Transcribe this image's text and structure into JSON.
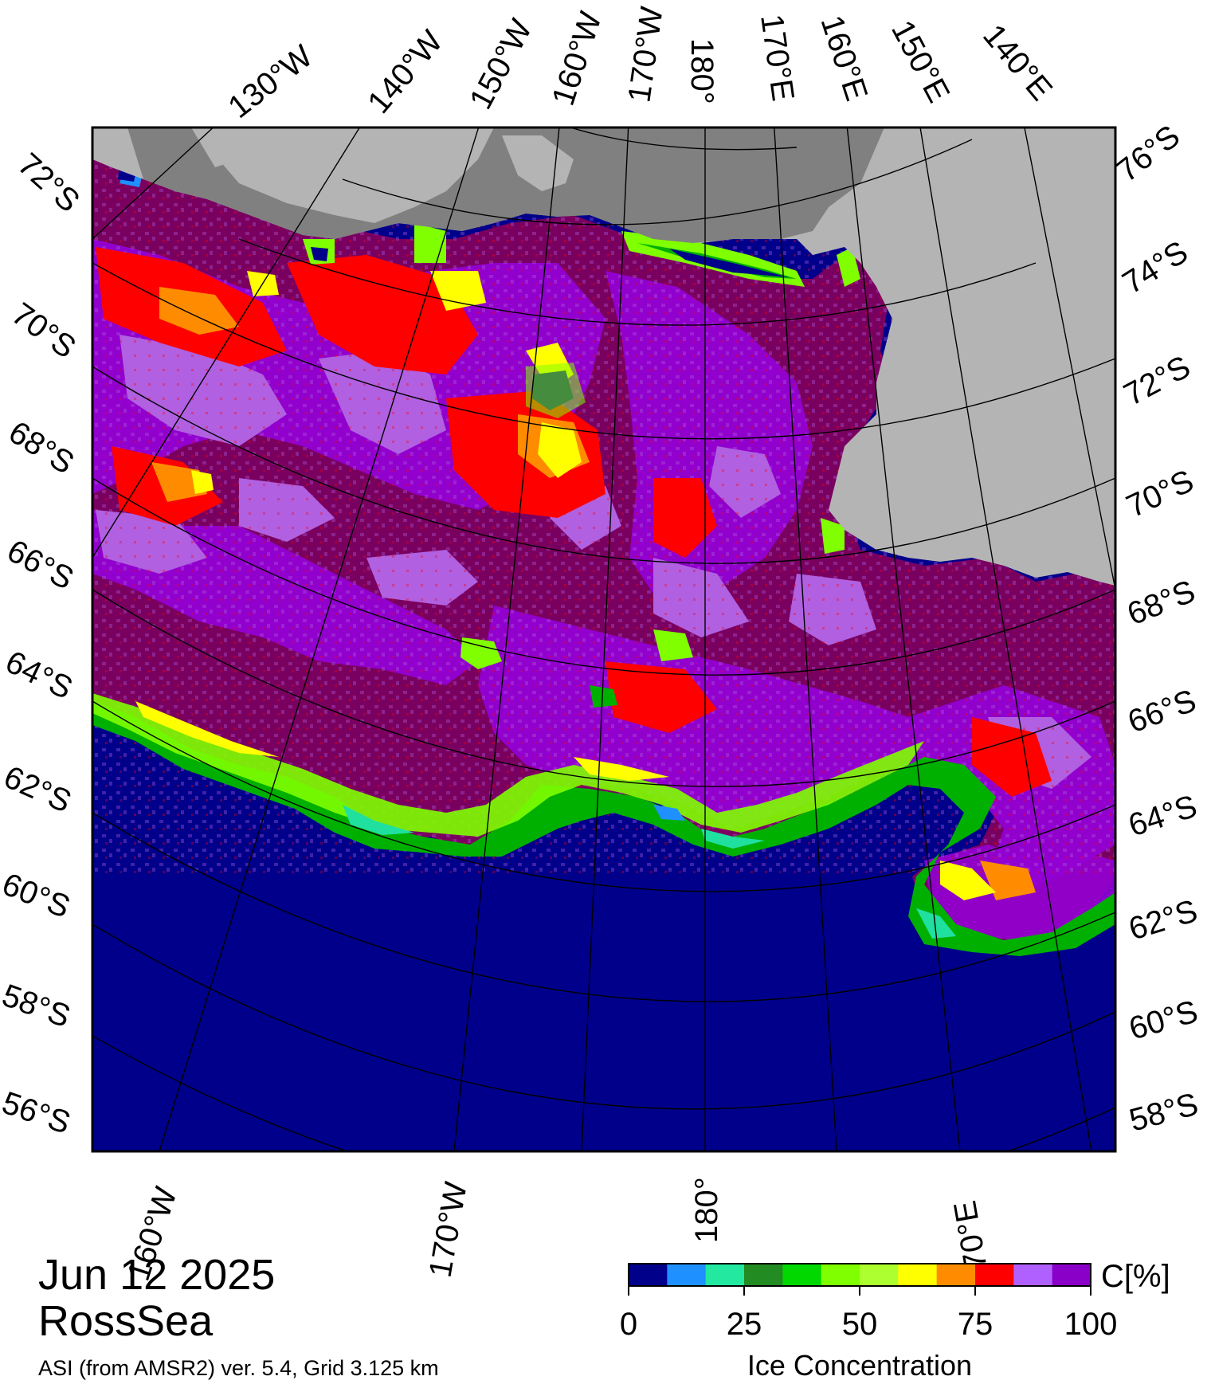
{
  "date": "Jun 12 2025",
  "region": "RossSea",
  "source_line": "ASI (from AMSR2) ver. 5.4,  Grid 3.125 km",
  "colorbar": {
    "unit_label": "C[%]",
    "title": "Ice Concentration",
    "ticks": [
      "0",
      "25",
      "50",
      "75",
      "100"
    ],
    "colors": [
      "#00008b",
      "#1e90ff",
      "#22e8a0",
      "#228b22",
      "#00d800",
      "#7fff00",
      "#adff2f",
      "#ffff00",
      "#ff8c00",
      "#ff0000",
      "#b060ff",
      "#8b00c8"
    ]
  },
  "palette": {
    "open_ocean": "#00008b",
    "land": "#b4b4b4",
    "ice_shelf": "#808080",
    "ice_100": "#7a0060",
    "ice_95": "#9400d3",
    "ice_90": "#b060e0",
    "ice_85": "#ff0000",
    "ice_80": "#ff8c00",
    "ice_75": "#ffff00",
    "ice_60": "#7fff00",
    "ice_40": "#00b000",
    "ice_20": "#20e0a0",
    "ice_10": "#1e90ff"
  },
  "top_longitude_labels": [
    "130°W",
    "140°W",
    "150°W",
    "160°W",
    "170°W",
    "180°",
    "170°E",
    "160°E",
    "150°E",
    "140°E"
  ],
  "bottom_longitude_labels": [
    "160°W",
    "170°W",
    "180°",
    "170°E"
  ],
  "left_latitude_labels": [
    "72°S",
    "70°S",
    "68°S",
    "66°S",
    "64°S",
    "62°S",
    "60°S",
    "58°S",
    "56°S"
  ],
  "right_latitude_labels": [
    "76°S",
    "74°S",
    "72°S",
    "70°S",
    "68°S",
    "66°S",
    "64°S",
    "62°S",
    "60°S",
    "58°S"
  ]
}
